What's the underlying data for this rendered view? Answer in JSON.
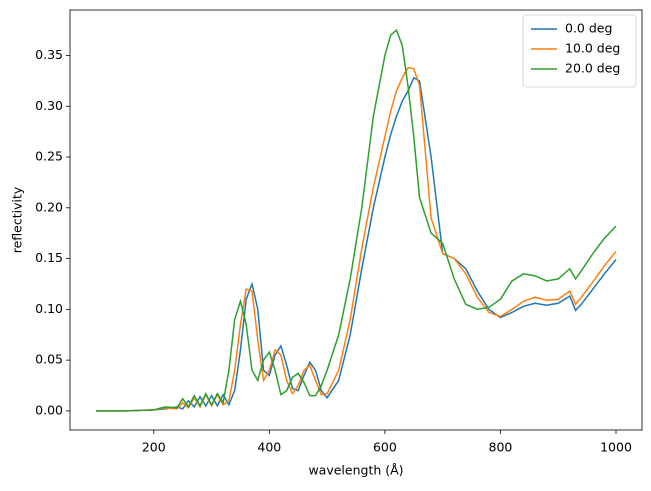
{
  "chart_data": {
    "type": "line",
    "xlabel": "wavelength (Å)",
    "ylabel": "reflectivity",
    "x": [
      100,
      150,
      200,
      220,
      240,
      250,
      260,
      270,
      280,
      290,
      300,
      310,
      320,
      330,
      340,
      350,
      360,
      370,
      380,
      390,
      400,
      410,
      420,
      430,
      440,
      450,
      460,
      470,
      480,
      490,
      500,
      520,
      540,
      560,
      580,
      600,
      610,
      620,
      630,
      640,
      650,
      660,
      680,
      700,
      720,
      740,
      760,
      780,
      800,
      820,
      840,
      860,
      880,
      900,
      920,
      930,
      940,
      960,
      980,
      1000
    ],
    "series": [
      {
        "name": "0.0 deg",
        "color": "#1f77b4",
        "values": [
          0,
          0,
          0.001,
          0.002,
          0.004,
          0.002,
          0.01,
          0.004,
          0.014,
          0.005,
          0.015,
          0.005,
          0.016,
          0.006,
          0.02,
          0.06,
          0.11,
          0.125,
          0.1,
          0.04,
          0.035,
          0.055,
          0.064,
          0.045,
          0.022,
          0.02,
          0.035,
          0.048,
          0.04,
          0.02,
          0.013,
          0.03,
          0.075,
          0.14,
          0.2,
          0.25,
          0.272,
          0.29,
          0.305,
          0.315,
          0.328,
          0.325,
          0.25,
          0.155,
          0.15,
          0.14,
          0.118,
          0.1,
          0.092,
          0.097,
          0.103,
          0.106,
          0.104,
          0.106,
          0.113,
          0.099,
          0.105,
          0.12,
          0.135,
          0.149
        ]
      },
      {
        "name": "10.0 deg",
        "color": "#ff7f0e",
        "values": [
          0,
          0,
          0.001,
          0.003,
          0.002,
          0.008,
          0.003,
          0.013,
          0.004,
          0.016,
          0.005,
          0.016,
          0.006,
          0.01,
          0.04,
          0.085,
          0.12,
          0.118,
          0.07,
          0.03,
          0.04,
          0.06,
          0.055,
          0.03,
          0.017,
          0.025,
          0.04,
          0.045,
          0.03,
          0.016,
          0.017,
          0.04,
          0.09,
          0.16,
          0.22,
          0.27,
          0.295,
          0.315,
          0.328,
          0.338,
          0.337,
          0.32,
          0.19,
          0.155,
          0.15,
          0.135,
          0.112,
          0.097,
          0.093,
          0.1,
          0.108,
          0.112,
          0.109,
          0.11,
          0.118,
          0.105,
          0.112,
          0.127,
          0.143,
          0.157
        ]
      },
      {
        "name": "20.0 deg",
        "color": "#2ca02c",
        "values": [
          0,
          0,
          0.001,
          0.004,
          0.003,
          0.012,
          0.004,
          0.015,
          0.005,
          0.017,
          0.006,
          0.017,
          0.008,
          0.04,
          0.09,
          0.108,
          0.085,
          0.04,
          0.03,
          0.05,
          0.058,
          0.04,
          0.016,
          0.02,
          0.033,
          0.037,
          0.028,
          0.015,
          0.015,
          0.025,
          0.04,
          0.075,
          0.13,
          0.2,
          0.29,
          0.35,
          0.37,
          0.375,
          0.36,
          0.32,
          0.27,
          0.21,
          0.175,
          0.165,
          0.13,
          0.105,
          0.1,
          0.102,
          0.11,
          0.128,
          0.135,
          0.133,
          0.128,
          0.13,
          0.14,
          0.13,
          0.138,
          0.155,
          0.17,
          0.182
        ]
      }
    ],
    "xlim": [
      55,
      1045
    ],
    "ylim": [
      -0.0188,
      0.3948
    ],
    "xticks": [
      200,
      400,
      600,
      800,
      1000
    ],
    "yticks": [
      {
        "value": 0,
        "label": "0.00"
      },
      0.05,
      {
        "value": 0.1,
        "label": "0.10"
      },
      0.15,
      {
        "value": 0.2,
        "label": "0.20"
      },
      0.25,
      {
        "value": 0.3,
        "label": "0.30"
      },
      0.35
    ],
    "legend": "upper right"
  }
}
